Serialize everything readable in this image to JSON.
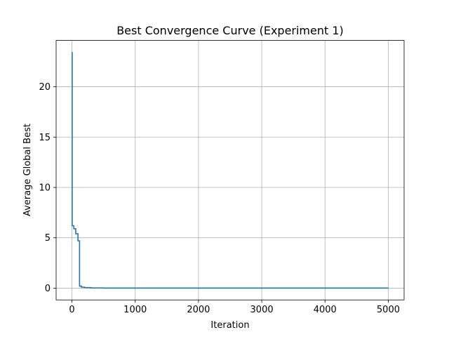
{
  "chart_data": {
    "type": "line",
    "title": "Best Convergence Curve (Experiment 1)",
    "xlabel": "Iteration",
    "ylabel": "Average Global Best",
    "xlim": [
      -250,
      5250
    ],
    "ylim": [
      -1.17,
      24.6
    ],
    "xticks": [
      0,
      1000,
      2000,
      3000,
      4000,
      5000
    ],
    "xtick_labels": [
      "0",
      "1000",
      "2000",
      "3000",
      "4000",
      "5000"
    ],
    "yticks": [
      0,
      5,
      10,
      15,
      20
    ],
    "ytick_labels": [
      "0",
      "5",
      "10",
      "15",
      "20"
    ],
    "grid": true,
    "line_style": "step",
    "series": [
      {
        "color": "#1f77b4",
        "x": [
          0,
          2,
          4,
          25,
          30,
          55,
          60,
          90,
          95,
          100,
          120,
          150,
          200,
          300,
          500,
          1000,
          2000,
          3000,
          4000,
          5000
        ],
        "y": [
          23.4,
          23.4,
          6.2,
          6.2,
          5.9,
          5.9,
          5.4,
          5.4,
          4.7,
          4.7,
          0.2,
          0.1,
          0.05,
          0.02,
          0.01,
          0.01,
          0.01,
          0.01,
          0.01,
          0.01
        ]
      }
    ]
  }
}
